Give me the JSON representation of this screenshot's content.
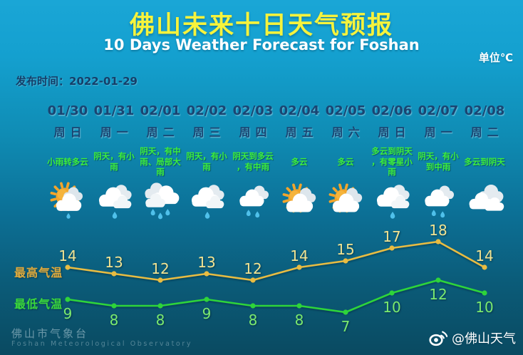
{
  "header": {
    "title": "佛山未来十日天气预报",
    "subtitle": "10 Days Weather Forecast for Foshan",
    "unit_label": "单位℃",
    "publish_label": "发布时间：2022-01-29"
  },
  "legend": {
    "high_label": "最高气温",
    "low_label": "最低气温"
  },
  "days": [
    {
      "date": "01/30",
      "weekday": "周日",
      "condition": "小雨转多云",
      "icon": "sun-clouds-drizzle",
      "high": 14,
      "low": 9
    },
    {
      "date": "01/31",
      "weekday": "周一",
      "condition": "阴天，有小雨",
      "icon": "rain-light",
      "high": 13,
      "low": 8
    },
    {
      "date": "02/01",
      "weekday": "周二",
      "condition": "阴天，有中雨、局部大雨",
      "icon": "rain-heavy",
      "high": 12,
      "low": 8
    },
    {
      "date": "02/02",
      "weekday": "周三",
      "condition": "阴天，有小雨",
      "icon": "rain-light",
      "high": 13,
      "low": 9
    },
    {
      "date": "02/03",
      "weekday": "周四",
      "condition": "阴天到多云，有中雨",
      "icon": "rain-medium",
      "high": 12,
      "low": 8
    },
    {
      "date": "02/04",
      "weekday": "周五",
      "condition": "多云",
      "icon": "sun-clouds",
      "high": 14,
      "low": 8
    },
    {
      "date": "02/05",
      "weekday": "周六",
      "condition": "多云",
      "icon": "sun-clouds",
      "high": 15,
      "low": 7
    },
    {
      "date": "02/06",
      "weekday": "周日",
      "condition": "多云到阴天，有零星小雨",
      "icon": "rain-light",
      "high": 17,
      "low": 10
    },
    {
      "date": "02/07",
      "weekday": "周一",
      "condition": "阴天，有小到中雨",
      "icon": "rain-medium",
      "high": 18,
      "low": 12
    },
    {
      "date": "02/08",
      "weekday": "周二",
      "condition": "多云到阴天",
      "icon": "cloudy",
      "high": 14,
      "low": 10
    }
  ],
  "footer": {
    "org_cn": "佛山市气象台",
    "org_en": "Foshan Meteorological Observatory",
    "weibo_icon": "weibo-icon",
    "weibo_handle": "@佛山天气"
  },
  "colors": {
    "high_line": "#e8bc42",
    "high_label_text": "#f1e392",
    "low_line": "#2ed43a",
    "low_label_text": "#7be96e",
    "title_yellow": "#f6f33c",
    "date_navy": "#1a4572",
    "condition_green": "#3dee3d",
    "rain_drop": "#4fc0ea",
    "sun": "#f2a52b",
    "bg_top": "#1aa6d6",
    "bg_bottom": "#0a4a61"
  },
  "chart_data": {
    "type": "line",
    "categories": [
      "01/30",
      "01/31",
      "02/01",
      "02/02",
      "02/03",
      "02/04",
      "02/05",
      "02/06",
      "02/07",
      "02/08"
    ],
    "series": [
      {
        "name": "最高气温",
        "values": [
          14,
          13,
          12,
          13,
          12,
          14,
          15,
          17,
          18,
          14
        ]
      },
      {
        "name": "最低气温",
        "values": [
          9,
          8,
          8,
          9,
          8,
          8,
          7,
          10,
          12,
          10
        ]
      }
    ],
    "title": "佛山未来十日天气预报",
    "subtitle": "10 Days Weather Forecast for Foshan",
    "unit": "℃",
    "ylim": [
      5,
      20
    ],
    "grid": false,
    "legend_position": "left",
    "point_labels": true
  }
}
